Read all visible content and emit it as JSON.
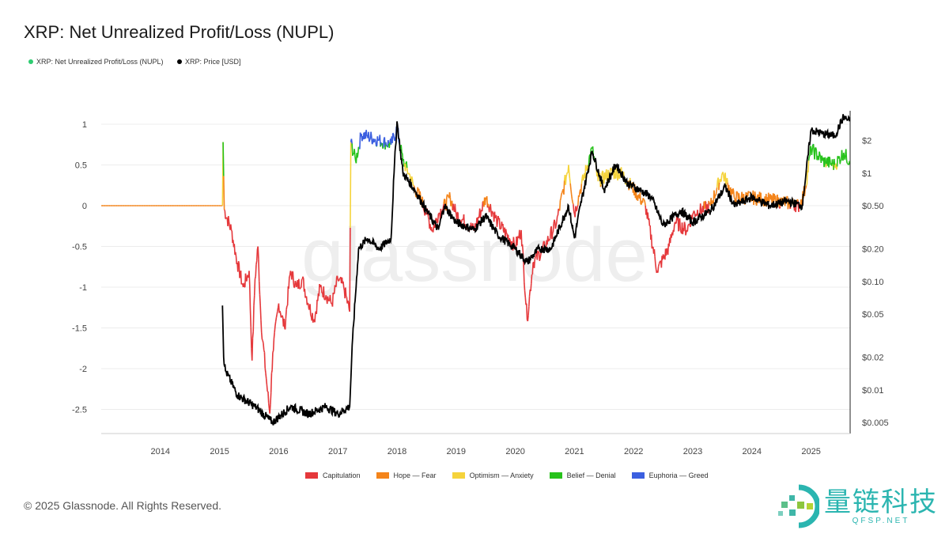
{
  "chart_data": {
    "type": "line",
    "title": "XRP: Net Unrealized Profit/Loss (NUPL)",
    "legend": [
      {
        "name": "XRP: Net Unrealized Profit/Loss (NUPL)",
        "color": "#2ecc71"
      },
      {
        "name": "XRP: Price [USD]",
        "color": "#000000"
      }
    ],
    "zones": [
      {
        "name": "Capitulation",
        "color": "#e5383b",
        "range": [
          -3,
          0
        ]
      },
      {
        "name": "Hope — Fear",
        "color": "#f4841a",
        "range": [
          0,
          0.25
        ]
      },
      {
        "name": "Optimism — Anxiety",
        "color": "#f5d33b",
        "range": [
          0.25,
          0.5
        ]
      },
      {
        "name": "Belief — Denial",
        "color": "#27c21b",
        "range": [
          0.5,
          0.75
        ]
      },
      {
        "name": "Euphoria — Greed",
        "color": "#3b5fe0",
        "range": [
          0.75,
          1.5
        ]
      }
    ],
    "x_ticks": [
      "2014",
      "2015",
      "2016",
      "2017",
      "2018",
      "2019",
      "2020",
      "2021",
      "2022",
      "2023",
      "2024",
      "2025"
    ],
    "xlim": [
      2013.0,
      2025.7
    ],
    "y_left": {
      "ticks": [
        1,
        0.5,
        0,
        -0.5,
        -1,
        -1.5,
        -2,
        -2.5
      ],
      "labels": [
        "1",
        "0.5",
        "0",
        "-0.5",
        "-1",
        "-1.5",
        "-2",
        "-2.5"
      ],
      "ylim": [
        -2.8,
        1.1
      ]
    },
    "y_right": {
      "scale": "log",
      "ticks": [
        2,
        1,
        0.5,
        0.2,
        0.1,
        0.05,
        0.02,
        0.01,
        0.005
      ],
      "labels": [
        "$2",
        "$1",
        "$0.50",
        "$0.20",
        "$0.10",
        "$0.05",
        "$0.02",
        "$0.01",
        "$0.005"
      ]
    },
    "series": [
      {
        "name": "NUPL",
        "points": [
          [
            2013.0,
            0
          ],
          [
            2015.05,
            0
          ],
          [
            2015.06,
            0.78
          ],
          [
            2015.08,
            -0.05
          ],
          [
            2015.2,
            -0.3
          ],
          [
            2015.3,
            -0.7
          ],
          [
            2015.4,
            -1.0
          ],
          [
            2015.5,
            -0.8
          ],
          [
            2015.55,
            -1.9
          ],
          [
            2015.6,
            -0.9
          ],
          [
            2015.65,
            -0.5
          ],
          [
            2015.7,
            -1.4
          ],
          [
            2015.8,
            -2.2
          ],
          [
            2015.85,
            -2.55
          ],
          [
            2015.9,
            -1.8
          ],
          [
            2016.0,
            -1.2
          ],
          [
            2016.1,
            -1.5
          ],
          [
            2016.2,
            -0.8
          ],
          [
            2016.3,
            -1.0
          ],
          [
            2016.4,
            -0.9
          ],
          [
            2016.5,
            -1.2
          ],
          [
            2016.6,
            -1.4
          ],
          [
            2016.7,
            -1.0
          ],
          [
            2016.8,
            -1.1
          ],
          [
            2016.9,
            -1.2
          ],
          [
            2017.0,
            -0.9
          ],
          [
            2017.1,
            -1.0
          ],
          [
            2017.2,
            -1.3
          ],
          [
            2017.22,
            0.78
          ],
          [
            2017.3,
            0.55
          ],
          [
            2017.4,
            0.88
          ],
          [
            2017.5,
            0.85
          ],
          [
            2017.7,
            0.8
          ],
          [
            2017.9,
            0.75
          ],
          [
            2018.0,
            0.95
          ],
          [
            2018.1,
            0.55
          ],
          [
            2018.2,
            0.4
          ],
          [
            2018.3,
            0.2
          ],
          [
            2018.4,
            0.1
          ],
          [
            2018.5,
            -0.1
          ],
          [
            2018.6,
            -0.3
          ],
          [
            2018.7,
            -0.1
          ],
          [
            2018.9,
            0.1
          ],
          [
            2019.0,
            -0.1
          ],
          [
            2019.3,
            -0.3
          ],
          [
            2019.5,
            0.1
          ],
          [
            2019.7,
            -0.2
          ],
          [
            2019.9,
            -0.4
          ],
          [
            2020.0,
            -0.5
          ],
          [
            2020.1,
            -0.3
          ],
          [
            2020.2,
            -1.4
          ],
          [
            2020.3,
            -0.7
          ],
          [
            2020.5,
            -0.5
          ],
          [
            2020.7,
            -0.2
          ],
          [
            2020.9,
            0.5
          ],
          [
            2021.0,
            -0.1
          ],
          [
            2021.1,
            0.2
          ],
          [
            2021.3,
            0.7
          ],
          [
            2021.4,
            0.3
          ],
          [
            2021.6,
            0.4
          ],
          [
            2021.8,
            0.4
          ],
          [
            2022.0,
            0.2
          ],
          [
            2022.2,
            0.0
          ],
          [
            2022.4,
            -0.8
          ],
          [
            2022.6,
            -0.5
          ],
          [
            2022.7,
            -0.2
          ],
          [
            2022.9,
            -0.3
          ],
          [
            2023.0,
            -0.1
          ],
          [
            2023.3,
            0.0
          ],
          [
            2023.5,
            0.4
          ],
          [
            2023.7,
            0.1
          ],
          [
            2024.0,
            0.1
          ],
          [
            2024.5,
            0.05
          ],
          [
            2024.8,
            0.0
          ],
          [
            2024.9,
            0.2
          ],
          [
            2025.0,
            0.7
          ],
          [
            2025.2,
            0.55
          ],
          [
            2025.4,
            0.5
          ],
          [
            2025.55,
            0.65
          ],
          [
            2025.65,
            0.55
          ]
        ]
      },
      {
        "name": "Price [USD]",
        "points": [
          [
            2015.05,
            0.06
          ],
          [
            2015.07,
            0.02
          ],
          [
            2015.1,
            0.015
          ],
          [
            2015.3,
            0.009
          ],
          [
            2015.6,
            0.007
          ],
          [
            2015.9,
            0.005
          ],
          [
            2016.2,
            0.007
          ],
          [
            2016.5,
            0.006
          ],
          [
            2016.8,
            0.007
          ],
          [
            2017.0,
            0.006
          ],
          [
            2017.2,
            0.007
          ],
          [
            2017.25,
            0.03
          ],
          [
            2017.35,
            0.2
          ],
          [
            2017.5,
            0.25
          ],
          [
            2017.7,
            0.2
          ],
          [
            2017.9,
            0.25
          ],
          [
            2017.95,
            1.0
          ],
          [
            2018.0,
            3.0
          ],
          [
            2018.1,
            1.0
          ],
          [
            2018.3,
            0.7
          ],
          [
            2018.5,
            0.45
          ],
          [
            2018.7,
            0.3
          ],
          [
            2018.8,
            0.5
          ],
          [
            2019.0,
            0.35
          ],
          [
            2019.3,
            0.3
          ],
          [
            2019.5,
            0.4
          ],
          [
            2019.7,
            0.27
          ],
          [
            2020.0,
            0.2
          ],
          [
            2020.2,
            0.15
          ],
          [
            2020.4,
            0.2
          ],
          [
            2020.6,
            0.2
          ],
          [
            2020.9,
            0.5
          ],
          [
            2021.0,
            0.25
          ],
          [
            2021.1,
            0.5
          ],
          [
            2021.3,
            1.6
          ],
          [
            2021.5,
            0.7
          ],
          [
            2021.7,
            1.2
          ],
          [
            2021.9,
            0.8
          ],
          [
            2022.1,
            0.7
          ],
          [
            2022.3,
            0.6
          ],
          [
            2022.5,
            0.33
          ],
          [
            2022.8,
            0.45
          ],
          [
            2023.0,
            0.35
          ],
          [
            2023.3,
            0.45
          ],
          [
            2023.55,
            0.75
          ],
          [
            2023.7,
            0.5
          ],
          [
            2024.0,
            0.6
          ],
          [
            2024.3,
            0.5
          ],
          [
            2024.6,
            0.55
          ],
          [
            2024.85,
            0.5
          ],
          [
            2025.0,
            2.5
          ],
          [
            2025.2,
            2.3
          ],
          [
            2025.4,
            2.2
          ],
          [
            2025.55,
            3.3
          ],
          [
            2025.65,
            3.0
          ]
        ]
      }
    ],
    "watermark": "glassnode"
  },
  "footer": {
    "copyright": "© 2025 Glassnode. All Rights Reserved."
  },
  "brand": {
    "name_cn": "量链科技",
    "domain": "QFSP.NET"
  }
}
